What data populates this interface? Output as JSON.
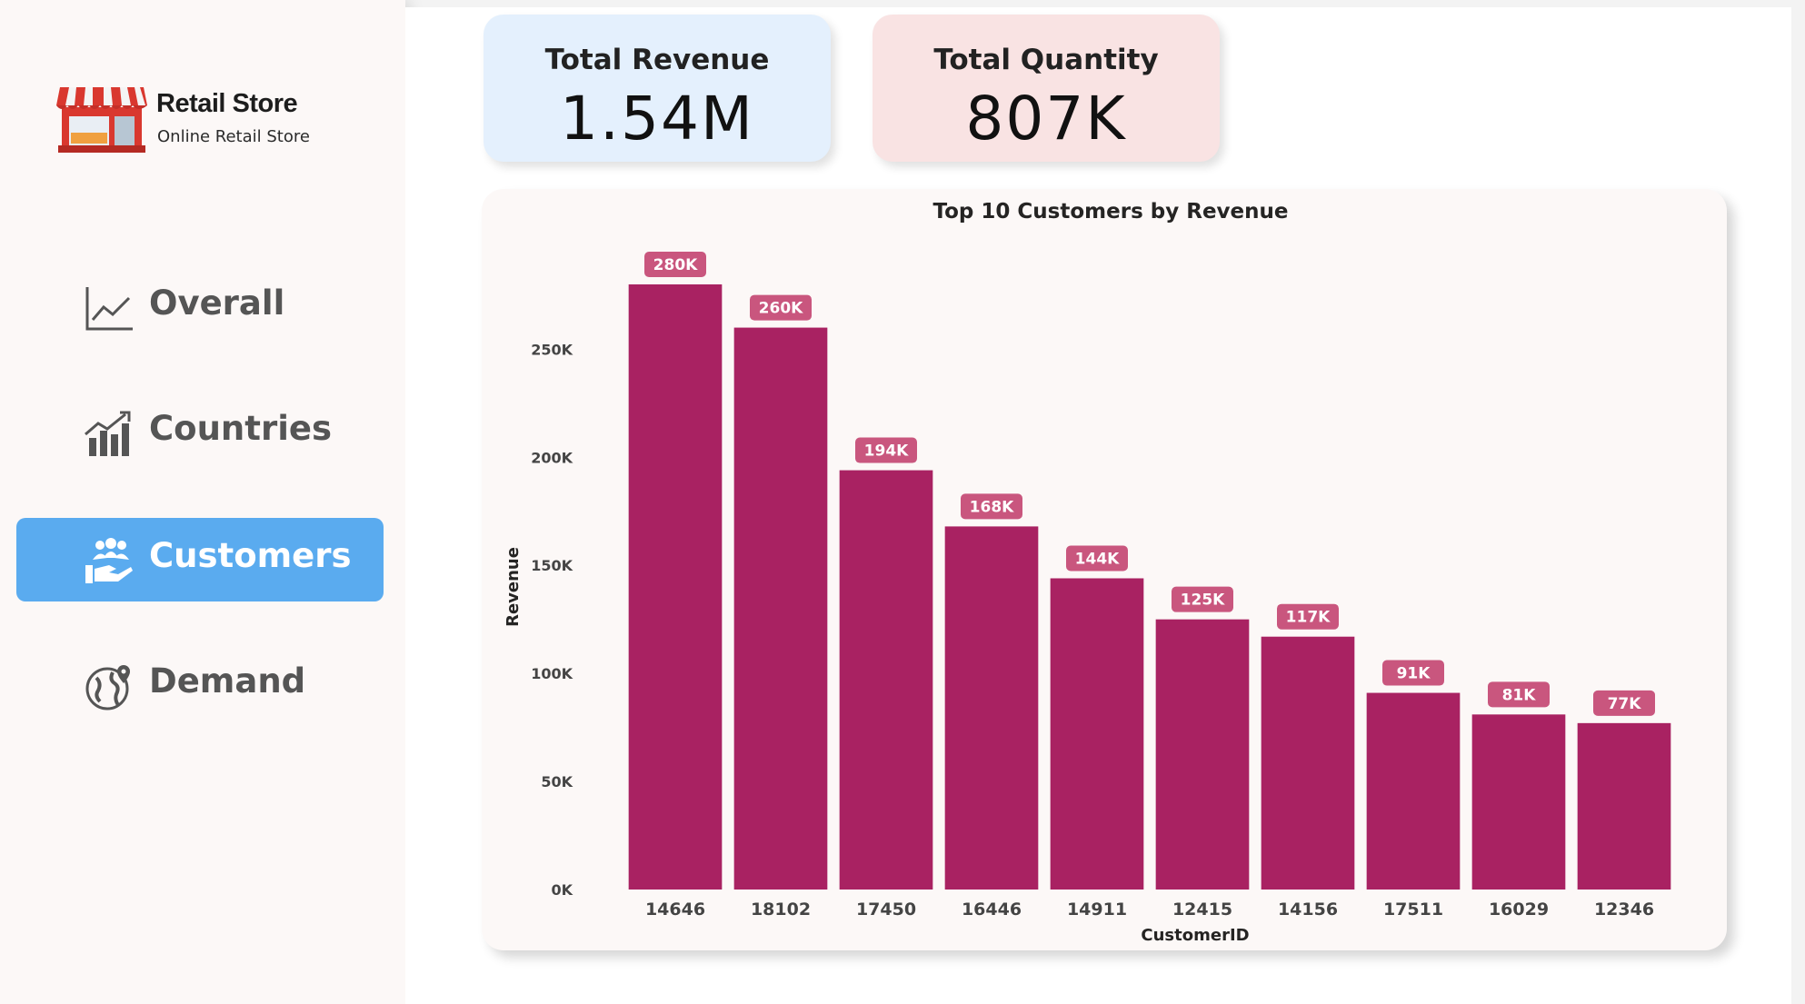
{
  "brand": {
    "name": "Retail Store",
    "tagline": "Online Retail Store"
  },
  "nav": {
    "items": [
      {
        "label": "Overall",
        "icon": "line-chart-icon",
        "active": false
      },
      {
        "label": "Countries",
        "icon": "bar-growth-icon",
        "active": false
      },
      {
        "label": "Customers",
        "icon": "customers-hand-icon",
        "active": true
      },
      {
        "label": "Demand",
        "icon": "globe-pin-icon",
        "active": false
      }
    ]
  },
  "kpis": {
    "revenue": {
      "title": "Total Revenue",
      "value": "1.54M",
      "bg": "#e4f0fd"
    },
    "quantity": {
      "title": "Total Quantity",
      "value": "807K",
      "bg": "#f9e3e3"
    }
  },
  "colors": {
    "bar": "#a92262",
    "label_bg": "#c9567e",
    "active_nav": "#5aabef"
  },
  "chart_data": {
    "type": "bar",
    "title": "Top 10 Customers by Revenue",
    "xlabel": "CustomerID",
    "ylabel": "Revenue",
    "categories": [
      "14646",
      "18102",
      "17450",
      "16446",
      "14911",
      "12415",
      "14156",
      "17511",
      "16029",
      "12346"
    ],
    "values": [
      280000,
      260000,
      194000,
      168000,
      144000,
      125000,
      117000,
      91000,
      81000,
      77000
    ],
    "data_labels": [
      "280K",
      "260K",
      "194K",
      "168K",
      "144K",
      "125K",
      "117K",
      "91K",
      "81K",
      "77K"
    ],
    "yticks": [
      0,
      50000,
      100000,
      150000,
      200000,
      250000
    ],
    "ytick_labels": [
      "0K",
      "50K",
      "100K",
      "150K",
      "200K",
      "250K"
    ],
    "ylim": [
      0,
      280000
    ],
    "grid": false,
    "legend": "none"
  }
}
